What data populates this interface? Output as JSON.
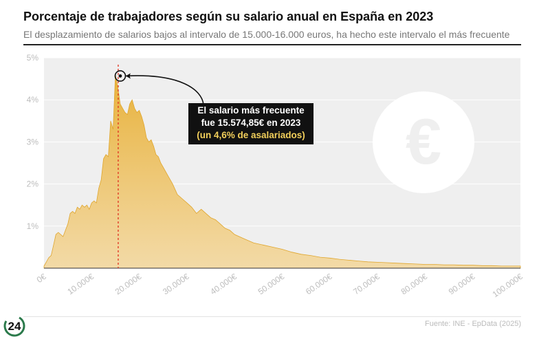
{
  "header": {
    "title": "Porcentaje de trabajadores según su salario anual en España en 2023",
    "subtitle": "El desplazamiento de salarios bajos al intervalo de 15.000-16.000 euros, ha hecho este intervalo el más frecuente"
  },
  "annotation": {
    "line1": "El salario más frecuente",
    "line2": "fue 15.574,85€ en 2023",
    "line3": "(un 4,6% de asalariados)"
  },
  "footer": {
    "source": "Fuente: INE - EpData (2025)",
    "logo_text": "24"
  },
  "colors": {
    "area": "#e8b23c",
    "marker_line": "#e03020",
    "plot_bg": "#efefef",
    "callout_bg": "#111111",
    "callout_highlight": "#f2cf5b"
  },
  "icons": {
    "watermark": "euro-icon"
  },
  "chart_data": {
    "type": "area",
    "title": "Porcentaje de trabajadores según su salario anual en España en 2023",
    "xlabel": "",
    "ylabel": "",
    "xlim": [
      0,
      100000
    ],
    "ylim": [
      0,
      5
    ],
    "x_ticks": [
      0,
      10000,
      20000,
      30000,
      40000,
      50000,
      60000,
      70000,
      80000,
      90000,
      100000
    ],
    "x_tick_labels": [
      "0€",
      "10.000€",
      "20.000€",
      "30.000€",
      "40.000€",
      "50.000€",
      "60.000€",
      "70.000€",
      "80.000€",
      "90.000€",
      "100.000€"
    ],
    "y_ticks": [
      1,
      2,
      3,
      4,
      5
    ],
    "y_tick_labels": [
      "1%",
      "2%",
      "3%",
      "4%",
      "5%"
    ],
    "grid": true,
    "highlight": {
      "x": 15574.85,
      "y": 4.6
    },
    "x": [
      0,
      500,
      1000,
      1500,
      2000,
      2500,
      3000,
      3500,
      4000,
      4500,
      5000,
      5500,
      6000,
      6500,
      7000,
      7500,
      8000,
      8500,
      9000,
      9500,
      10000,
      10500,
      11000,
      11500,
      12000,
      12500,
      13000,
      13500,
      14000,
      14500,
      15000,
      15500,
      16000,
      16500,
      17000,
      17500,
      18000,
      18500,
      19000,
      19500,
      20000,
      20500,
      21000,
      21500,
      22000,
      22500,
      23000,
      23500,
      24000,
      24500,
      25000,
      26000,
      27000,
      28000,
      29000,
      30000,
      31000,
      32000,
      33000,
      34000,
      35000,
      36000,
      37000,
      38000,
      39000,
      40000,
      42000,
      44000,
      46000,
      48000,
      50000,
      52000,
      54000,
      56000,
      58000,
      60000,
      62000,
      64000,
      66000,
      68000,
      70000,
      72000,
      74000,
      76000,
      78000,
      80000,
      82000,
      84000,
      86000,
      88000,
      90000,
      92000,
      94000,
      96000,
      98000,
      100000
    ],
    "values": [
      0.05,
      0.15,
      0.25,
      0.3,
      0.55,
      0.8,
      0.85,
      0.8,
      0.75,
      0.9,
      1.05,
      1.3,
      1.35,
      1.3,
      1.45,
      1.4,
      1.5,
      1.45,
      1.5,
      1.4,
      1.55,
      1.6,
      1.55,
      1.9,
      2.1,
      2.6,
      2.7,
      2.65,
      3.5,
      3.3,
      4.6,
      4.3,
      3.9,
      3.8,
      3.7,
      3.65,
      3.9,
      4.0,
      3.8,
      3.7,
      3.75,
      3.6,
      3.4,
      3.1,
      3.0,
      3.05,
      2.9,
      2.7,
      2.65,
      2.5,
      2.4,
      2.2,
      2.0,
      1.75,
      1.65,
      1.55,
      1.45,
      1.3,
      1.4,
      1.3,
      1.2,
      1.15,
      1.05,
      0.95,
      0.9,
      0.8,
      0.7,
      0.6,
      0.55,
      0.5,
      0.45,
      0.38,
      0.33,
      0.3,
      0.26,
      0.24,
      0.21,
      0.19,
      0.17,
      0.15,
      0.14,
      0.13,
      0.12,
      0.11,
      0.1,
      0.09,
      0.09,
      0.08,
      0.08,
      0.07,
      0.07,
      0.06,
      0.06,
      0.05,
      0.05,
      0.05
    ]
  }
}
